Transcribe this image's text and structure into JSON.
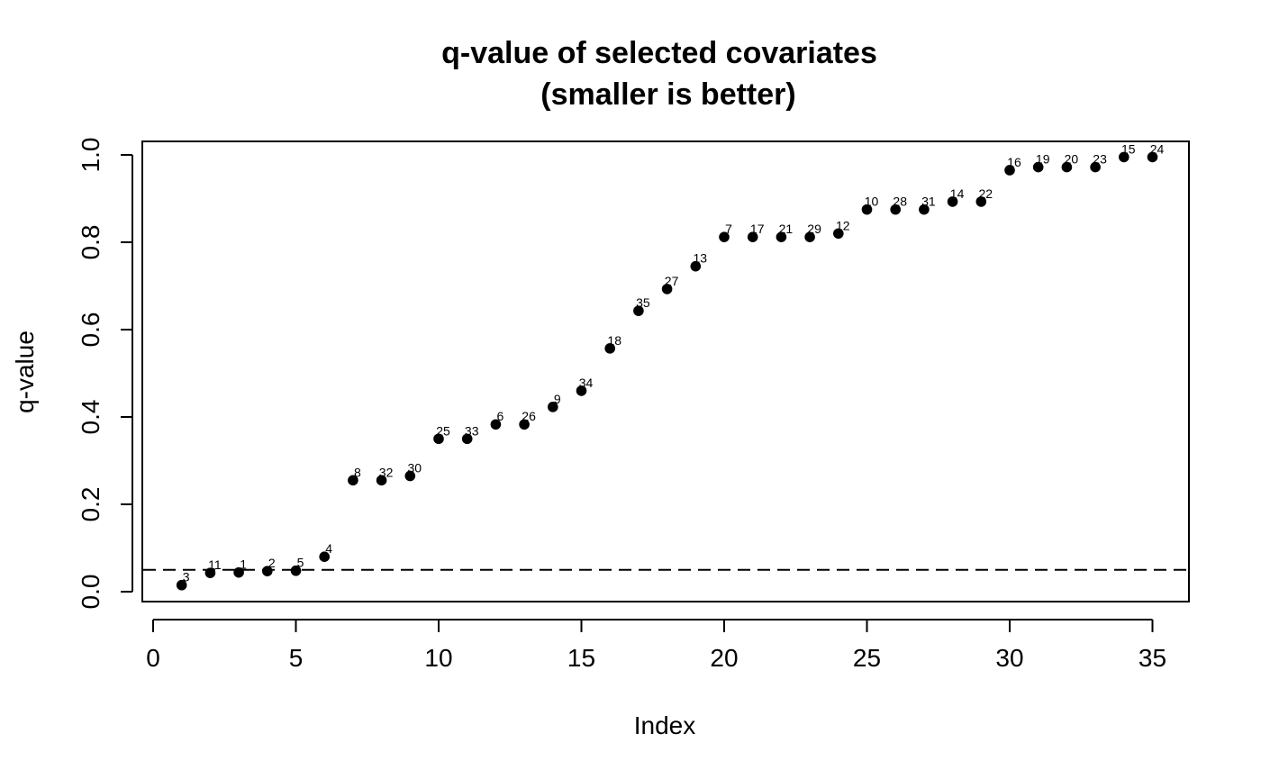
{
  "chart_data": {
    "type": "scatter",
    "title": "q-value of selected covariates",
    "subtitle": "(smaller is better)",
    "xlabel": "Index",
    "ylabel": "q-value",
    "xlim": [
      0,
      35
    ],
    "ylim": [
      0,
      1
    ],
    "x_ticks": [
      0,
      5,
      10,
      15,
      20,
      25,
      30,
      35
    ],
    "y_ticks": [
      0.0,
      0.2,
      0.4,
      0.6,
      0.8,
      1.0
    ],
    "x_tick_labels": [
      "0",
      "5",
      "10",
      "15",
      "20",
      "25",
      "30",
      "35"
    ],
    "y_tick_labels": [
      "0.0",
      "0.2",
      "0.4",
      "0.6",
      "0.8",
      "1.0"
    ],
    "grid": false,
    "reference_line": {
      "y": 0.05,
      "style": "dashed"
    },
    "points": [
      {
        "x": 1,
        "y": 0.015,
        "label": "3"
      },
      {
        "x": 2,
        "y": 0.043,
        "label": "11"
      },
      {
        "x": 3,
        "y": 0.044,
        "label": "1"
      },
      {
        "x": 4,
        "y": 0.047,
        "label": "2"
      },
      {
        "x": 5,
        "y": 0.048,
        "label": "5"
      },
      {
        "x": 6,
        "y": 0.08,
        "label": "4"
      },
      {
        "x": 7,
        "y": 0.255,
        "label": "8"
      },
      {
        "x": 8,
        "y": 0.255,
        "label": "32"
      },
      {
        "x": 9,
        "y": 0.265,
        "label": "30"
      },
      {
        "x": 10,
        "y": 0.35,
        "label": "25"
      },
      {
        "x": 11,
        "y": 0.35,
        "label": "33"
      },
      {
        "x": 12,
        "y": 0.383,
        "label": "6"
      },
      {
        "x": 13,
        "y": 0.383,
        "label": "26"
      },
      {
        "x": 14,
        "y": 0.423,
        "label": "9"
      },
      {
        "x": 15,
        "y": 0.46,
        "label": "34"
      },
      {
        "x": 16,
        "y": 0.557,
        "label": "18"
      },
      {
        "x": 17,
        "y": 0.643,
        "label": "35"
      },
      {
        "x": 18,
        "y": 0.693,
        "label": "27"
      },
      {
        "x": 19,
        "y": 0.745,
        "label": "13"
      },
      {
        "x": 20,
        "y": 0.812,
        "label": "7"
      },
      {
        "x": 21,
        "y": 0.812,
        "label": "17"
      },
      {
        "x": 22,
        "y": 0.812,
        "label": "21"
      },
      {
        "x": 23,
        "y": 0.812,
        "label": "29"
      },
      {
        "x": 24,
        "y": 0.82,
        "label": "12"
      },
      {
        "x": 25,
        "y": 0.875,
        "label": "10"
      },
      {
        "x": 26,
        "y": 0.875,
        "label": "28"
      },
      {
        "x": 27,
        "y": 0.875,
        "label": "31"
      },
      {
        "x": 28,
        "y": 0.893,
        "label": "14"
      },
      {
        "x": 29,
        "y": 0.893,
        "label": "22"
      },
      {
        "x": 30,
        "y": 0.965,
        "label": "16"
      },
      {
        "x": 31,
        "y": 0.972,
        "label": "19"
      },
      {
        "x": 32,
        "y": 0.972,
        "label": "20"
      },
      {
        "x": 33,
        "y": 0.972,
        "label": "23"
      },
      {
        "x": 34,
        "y": 0.995,
        "label": "15"
      },
      {
        "x": 35,
        "y": 0.995,
        "label": "24"
      }
    ]
  }
}
